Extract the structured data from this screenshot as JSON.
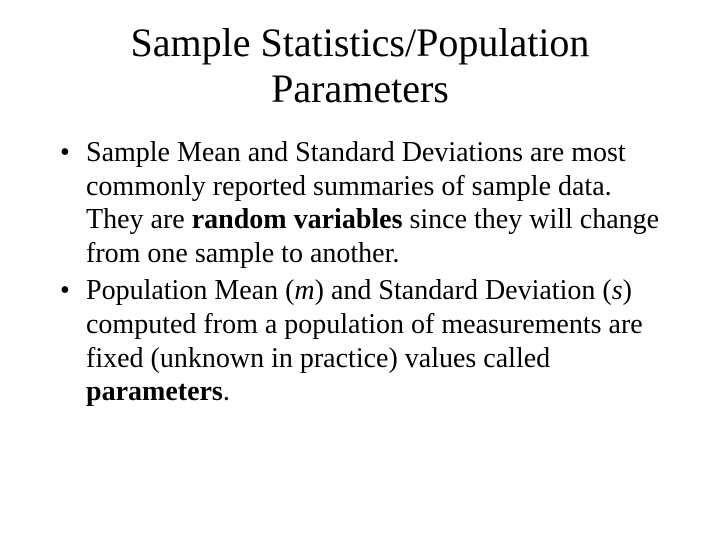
{
  "title": "Sample Statistics/Population Parameters",
  "bullets": {
    "b1": {
      "pre": "Sample Mean and Standard Deviations are most commonly reported summaries of sample data. They are ",
      "bold": "random variables",
      "post": " since they will change from one sample to another."
    },
    "b2": {
      "s1": "Population Mean (",
      "mu": "m",
      "s2": ") and Standard Deviation (",
      "sigma": "s",
      "s3": ") computed from a population of measurements are fixed (unknown in practice) values called ",
      "bold": "parameters",
      "s4": "."
    }
  },
  "style": {
    "background_color": "#ffffff",
    "text_color": "#000000",
    "title_fontsize": 40,
    "body_fontsize": 28,
    "font_family": "Times New Roman"
  }
}
